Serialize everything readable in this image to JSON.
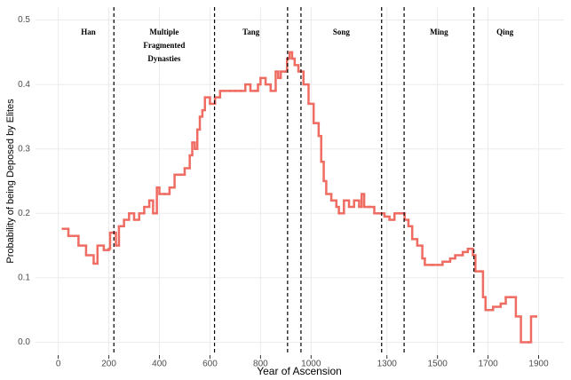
{
  "chart_data": {
    "type": "step",
    "xlabel": "Year of Ascension",
    "ylabel": "Probability of being Deposed by Elites",
    "color": "#ef6c62",
    "x": [
      18,
      40,
      80,
      110,
      140,
      155,
      180,
      200,
      205,
      225,
      228,
      240,
      260,
      280,
      300,
      320,
      340,
      360,
      375,
      390,
      400,
      420,
      440,
      460,
      480,
      500,
      520,
      530,
      540,
      550,
      560,
      570,
      580,
      600,
      620,
      640,
      680,
      700,
      720,
      740,
      760,
      780,
      790,
      800,
      820,
      840,
      860,
      870,
      880,
      900,
      905,
      915,
      925,
      935,
      950,
      970,
      990,
      1010,
      1030,
      1040,
      1050,
      1060,
      1080,
      1100,
      1110,
      1130,
      1150,
      1170,
      1190,
      1200,
      1210,
      1230,
      1250,
      1270,
      1290,
      1310,
      1330,
      1350,
      1370,
      1385,
      1400,
      1420,
      1440,
      1450,
      1480,
      1520,
      1550,
      1570,
      1600,
      1620,
      1640,
      1650,
      1670,
      1680,
      1690,
      1720,
      1750,
      1770,
      1790,
      1810,
      1830,
      1860,
      1870,
      1890
    ],
    "values": [
      0.176,
      0.165,
      0.15,
      0.135,
      0.122,
      0.15,
      0.143,
      0.145,
      0.17,
      0.17,
      0.15,
      0.18,
      0.19,
      0.2,
      0.19,
      0.2,
      0.21,
      0.22,
      0.2,
      0.24,
      0.23,
      0.23,
      0.24,
      0.26,
      0.26,
      0.27,
      0.29,
      0.31,
      0.3,
      0.33,
      0.35,
      0.36,
      0.38,
      0.37,
      0.38,
      0.39,
      0.39,
      0.39,
      0.39,
      0.4,
      0.39,
      0.39,
      0.4,
      0.41,
      0.4,
      0.39,
      0.42,
      0.41,
      0.42,
      0.42,
      0.44,
      0.45,
      0.44,
      0.43,
      0.42,
      0.4,
      0.37,
      0.34,
      0.32,
      0.28,
      0.25,
      0.23,
      0.22,
      0.21,
      0.2,
      0.22,
      0.21,
      0.22,
      0.21,
      0.23,
      0.21,
      0.21,
      0.2,
      0.2,
      0.195,
      0.19,
      0.2,
      0.2,
      0.19,
      0.18,
      0.16,
      0.15,
      0.13,
      0.12,
      0.12,
      0.125,
      0.13,
      0.135,
      0.14,
      0.145,
      0.135,
      0.11,
      0.11,
      0.07,
      0.05,
      0.055,
      0.06,
      0.07,
      0.07,
      0.04,
      0,
      0,
      0.04,
      0.04
    ],
    "xlim": [
      -90,
      2000
    ],
    "ylim": [
      -0.02,
      0.52
    ],
    "xticks": [
      0,
      200,
      400,
      600,
      800,
      1000,
      1300,
      1500,
      1700,
      1900
    ],
    "yticks": [
      {
        "value": 0,
        "label": "0.0"
      },
      0.1,
      0.2,
      0.3,
      0.4,
      0.5
    ],
    "grid": true,
    "vlines": [
      220,
      618,
      907,
      960,
      1279,
      1368,
      1644
    ],
    "annotations": [
      [
        "Han"
      ],
      [
        "Multiple",
        "Fragmented",
        "Dynasties"
      ],
      [
        "Tang"
      ],
      [
        "Song"
      ],
      [
        "Ming"
      ],
      [
        "Qing"
      ]
    ]
  }
}
